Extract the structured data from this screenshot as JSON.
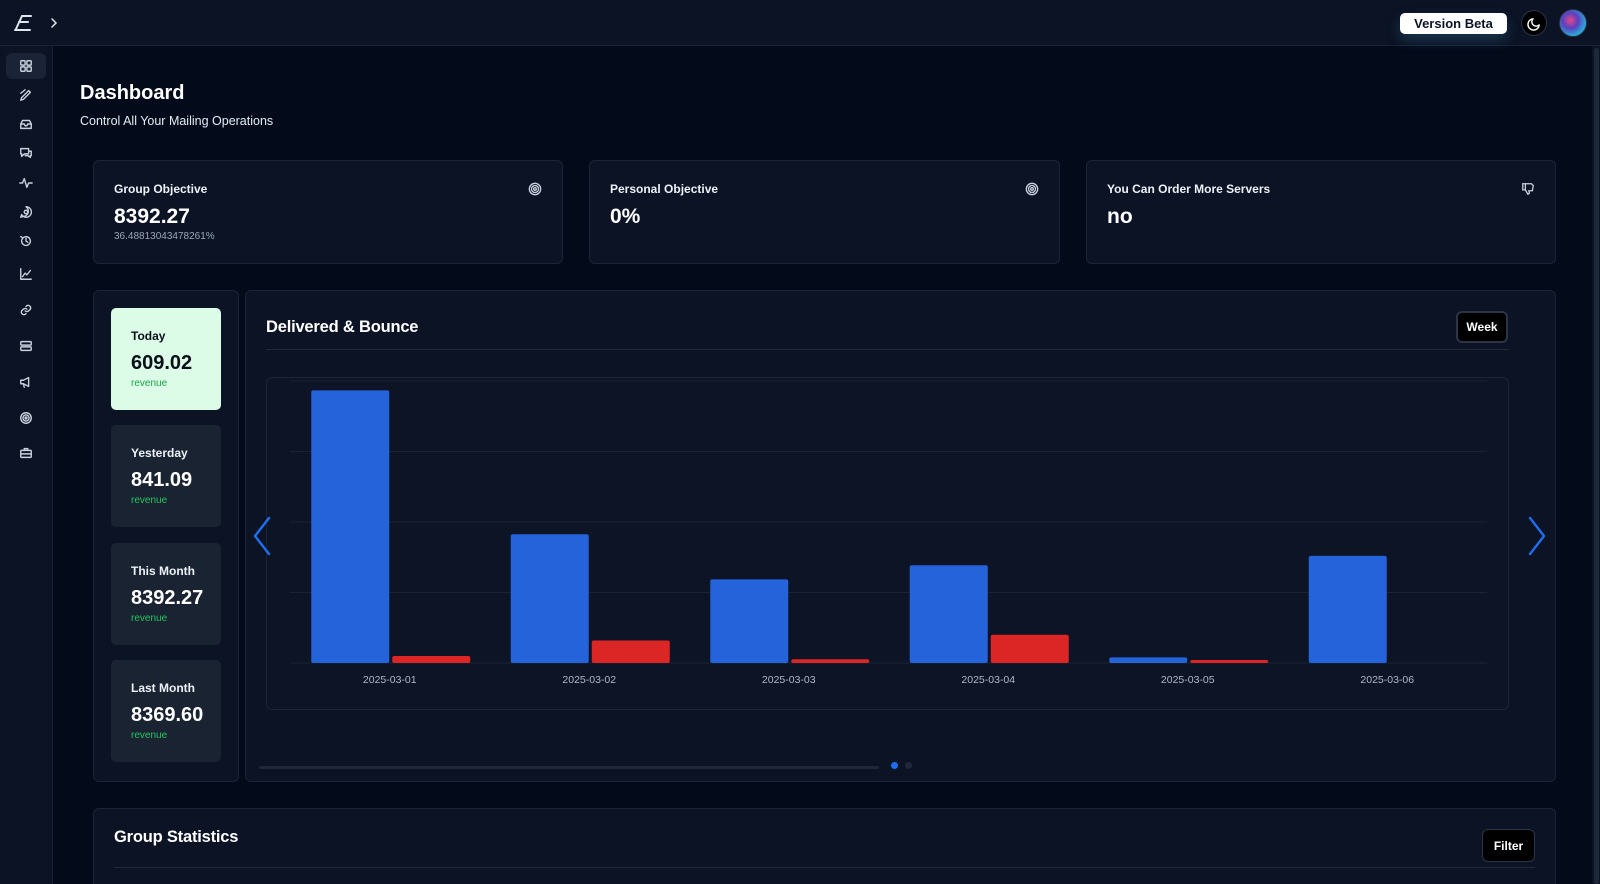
{
  "header": {
    "version_label": "Version Beta",
    "theme_toggle_icon": "moon-icon",
    "avatar_label": "user-avatar"
  },
  "sidebar": {
    "items": [
      {
        "icon": "dashboard-grid-icon",
        "active": true
      },
      {
        "icon": "pencil-send-icon",
        "active": false
      },
      {
        "icon": "inbox-tray-icon",
        "active": false
      },
      {
        "icon": "chat-bubbles-icon",
        "active": false
      },
      {
        "icon": "activity-pulse-icon",
        "active": false
      },
      {
        "icon": "message-search-icon",
        "active": false
      },
      {
        "icon": "history-icon",
        "active": false
      },
      {
        "icon": "line-chart-icon",
        "active": false
      },
      {
        "icon": "link-icon",
        "active": false
      },
      {
        "icon": "server-stack-icon",
        "active": false
      },
      {
        "icon": "megaphone-icon",
        "active": false
      },
      {
        "icon": "target-icon",
        "active": false
      },
      {
        "icon": "briefcase-icon",
        "active": false
      }
    ]
  },
  "page": {
    "title": "Dashboard",
    "subtitle": "Control All Your Mailing Operations"
  },
  "stats": [
    {
      "label": "Group Objective",
      "value": "8392.27",
      "note": "36.48813043478261%",
      "icon": "target-icon"
    },
    {
      "label": "Personal Objective",
      "value": "0%",
      "note": "",
      "icon": "target-icon"
    },
    {
      "label": "You Can Order More Servers",
      "value": "no",
      "note": "",
      "icon": "thumbs-down-icon"
    }
  ],
  "revenue": [
    {
      "label": "Today",
      "value": "609.02",
      "sub": "revenue"
    },
    {
      "label": "Yesterday",
      "value": "841.09",
      "sub": "revenue"
    },
    {
      "label": "This Month",
      "value": "8392.27",
      "sub": "revenue"
    },
    {
      "label": "Last Month",
      "value": "8369.60",
      "sub": "revenue"
    }
  ],
  "chart_panel": {
    "title": "Delivered & Bounce",
    "period_button": "Week",
    "page_dots": [
      true,
      false
    ]
  },
  "colors": {
    "delivered": "#2563db",
    "bounce": "#dc2626",
    "today_card": "#dcfce7",
    "accent": "#1d6ff2"
  },
  "chart_data": {
    "type": "bar",
    "title": "Delivered & Bounce",
    "categories": [
      "2025-03-01",
      "2025-03-02",
      "2025-03-03",
      "2025-03-04",
      "2025-03-05",
      "2025-03-06"
    ],
    "series": [
      {
        "values": [
          29000,
          13700,
          8900,
          10400,
          600,
          11400
        ]
      },
      {
        "values": [
          750,
          2400,
          400,
          3000,
          150,
          0
        ]
      }
    ],
    "ylim": [
      0,
      30000
    ],
    "grid": true,
    "xlabel": "",
    "ylabel": ""
  },
  "group_stats": {
    "title": "Group Statistics",
    "filter_label": "Filter"
  }
}
